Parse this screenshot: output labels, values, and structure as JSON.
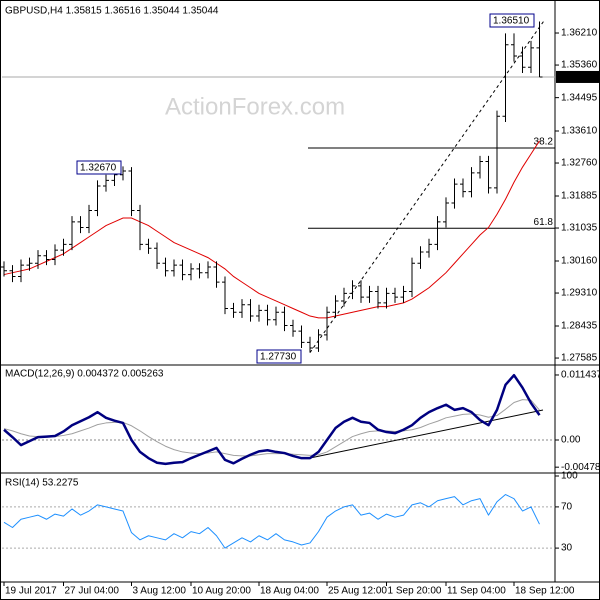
{
  "chart_data": [
    {
      "type": "ohlc",
      "title": "GBPUSD,H4 1.35815 1.36516 1.35044 1.35044",
      "watermark": "ActionForex.com",
      "color": "#000000",
      "open": [
        1.3,
        1.299,
        1.2975,
        1.3005,
        1.301,
        1.303,
        1.302,
        1.3045,
        1.306,
        1.312,
        1.3105,
        1.315,
        1.3215,
        1.323,
        1.3245,
        1.3255,
        1.315,
        1.306,
        1.305,
        1.301,
        1.299,
        1.3005,
        1.298,
        1.2995,
        1.2985,
        1.3,
        1.296,
        1.289,
        1.288,
        1.29,
        1.287,
        1.2885,
        1.286,
        1.288,
        1.2845,
        1.283,
        1.28,
        1.2785,
        1.282,
        1.288,
        1.291,
        1.293,
        1.295,
        1.292,
        1.2935,
        1.2905,
        1.293,
        1.292,
        1.2935,
        1.301,
        1.304,
        1.306,
        1.312,
        1.317,
        1.322,
        1.32,
        1.325,
        1.328,
        1.321,
        1.34,
        1.359,
        1.356,
        1.353,
        1.35815
      ],
      "high": [
        1.3015,
        1.3005,
        1.302,
        1.3025,
        1.3045,
        1.3045,
        1.306,
        1.3075,
        1.3135,
        1.3135,
        1.3165,
        1.323,
        1.3245,
        1.326,
        1.3267,
        1.3265,
        1.3165,
        1.3075,
        1.3065,
        1.3025,
        1.302,
        1.302,
        1.301,
        1.301,
        1.3015,
        1.3015,
        1.2975,
        1.2905,
        1.2915,
        1.2915,
        1.29,
        1.29,
        1.2895,
        1.2895,
        1.286,
        1.2845,
        1.2815,
        1.2835,
        1.2895,
        1.2925,
        1.2945,
        1.2965,
        1.2965,
        1.295,
        1.295,
        1.2945,
        1.2945,
        1.295,
        1.3025,
        1.3055,
        1.3075,
        1.3135,
        1.3185,
        1.3235,
        1.3235,
        1.3265,
        1.3295,
        1.3295,
        1.3415,
        1.362,
        1.362,
        1.3585,
        1.36,
        1.36516
      ],
      "low": [
        1.2975,
        1.296,
        1.296,
        1.299,
        1.2995,
        1.3005,
        1.3005,
        1.303,
        1.3045,
        1.309,
        1.309,
        1.3135,
        1.32,
        1.3215,
        1.323,
        1.3135,
        1.3045,
        1.3035,
        1.2995,
        1.2975,
        1.2975,
        1.2965,
        1.2965,
        1.297,
        1.297,
        1.2945,
        1.2875,
        1.2865,
        1.2865,
        1.2855,
        1.2855,
        1.2845,
        1.2845,
        1.283,
        1.2815,
        1.2785,
        1.2773,
        1.2775,
        1.2805,
        1.2865,
        1.2895,
        1.2915,
        1.2905,
        1.2905,
        1.289,
        1.289,
        1.2905,
        1.2905,
        1.292,
        1.2995,
        1.3025,
        1.3045,
        1.3105,
        1.3155,
        1.3185,
        1.3185,
        1.3235,
        1.3195,
        1.3195,
        1.3385,
        1.3545,
        1.3515,
        1.3515,
        1.35044
      ],
      "close": [
        1.299,
        1.2975,
        1.3005,
        1.301,
        1.303,
        1.302,
        1.3045,
        1.306,
        1.312,
        1.3105,
        1.315,
        1.3215,
        1.323,
        1.3245,
        1.3255,
        1.315,
        1.306,
        1.305,
        1.301,
        1.299,
        1.3005,
        1.298,
        1.2995,
        1.2985,
        1.3,
        1.296,
        1.289,
        1.288,
        1.29,
        1.287,
        1.2885,
        1.286,
        1.288,
        1.2845,
        1.283,
        1.28,
        1.2785,
        1.282,
        1.288,
        1.291,
        1.293,
        1.295,
        1.292,
        1.2935,
        1.2905,
        1.293,
        1.292,
        1.2935,
        1.301,
        1.304,
        1.306,
        1.312,
        1.317,
        1.322,
        1.32,
        1.325,
        1.328,
        1.321,
        1.34,
        1.359,
        1.356,
        1.353,
        1.35815,
        1.35044
      ],
      "ma": {
        "color": "#e00000",
        "values": [
          1.298,
          1.2985,
          1.299,
          1.2995,
          1.3005,
          1.3015,
          1.3025,
          1.3035,
          1.305,
          1.3065,
          1.308,
          1.3095,
          1.311,
          1.312,
          1.313,
          1.313,
          1.312,
          1.311,
          1.3095,
          1.308,
          1.3065,
          1.3055,
          1.3045,
          1.3035,
          1.3025,
          1.301,
          1.2995,
          1.2975,
          1.296,
          1.2945,
          1.293,
          1.292,
          1.291,
          1.29,
          1.289,
          1.288,
          1.287,
          1.2865,
          1.2865,
          1.287,
          1.2875,
          1.288,
          1.2885,
          1.289,
          1.2895,
          1.2895,
          1.29,
          1.2905,
          1.2915,
          1.293,
          1.2945,
          1.2965,
          1.2985,
          1.301,
          1.3035,
          1.306,
          1.3085,
          1.3105,
          1.314,
          1.318,
          1.3225,
          1.3265,
          1.33,
          1.3335
        ]
      },
      "current_price": 1.35044,
      "annotations": [
        {
          "value": 1.3651,
          "label": "1.36510"
        },
        {
          "value": 1.3267,
          "label": "1.32670"
        },
        {
          "value": 1.2773,
          "label": "1.27730"
        }
      ],
      "levels": [
        {
          "value": 1.3316,
          "label": "38.2"
        },
        {
          "value": 1.3103,
          "label": "61.8"
        }
      ],
      "ylim": [
        1.2748,
        1.3698
      ],
      "yticks": [
        {
          "value": 1.3621,
          "label": "1.36210"
        },
        {
          "value": 1.3536,
          "label": "1.35360"
        },
        1.34495,
        {
          "value": 1.3361,
          "label": "1.33610"
        },
        {
          "value": 1.3276,
          "label": "1.32760"
        },
        1.31885,
        1.31035,
        {
          "value": 1.3016,
          "label": "1.30160"
        },
        {
          "value": 1.2931,
          "label": "1.29310"
        },
        1.28435,
        1.27585
      ]
    },
    {
      "type": "line",
      "title": "MACD(12,26,9) 0.004372 0.005263",
      "series": [
        {
          "color": "#a0a0a0",
          "width": 1,
          "values": [
            0.002,
            0.0016,
            0.0011,
            0.0007,
            0.0006,
            0.0006,
            0.0006,
            0.0008,
            0.0011,
            0.0016,
            0.0021,
            0.0027,
            0.003,
            0.0031,
            0.0031,
            0.0025,
            0.0016,
            0.0006,
            -0.0003,
            -0.0011,
            -0.0017,
            -0.0021,
            -0.0023,
            -0.0024,
            -0.0023,
            -0.0021,
            -0.0024,
            -0.0027,
            -0.0028,
            -0.0028,
            -0.0026,
            -0.0024,
            -0.0024,
            -0.0024,
            -0.0025,
            -0.0026,
            -0.0027,
            -0.0026,
            -0.0021,
            -0.0012,
            -0.0003,
            0.0006,
            0.0011,
            0.0015,
            0.0016,
            0.0016,
            0.0015,
            0.0016,
            0.0018,
            0.0022,
            0.0028,
            0.0033,
            0.0039,
            0.0042,
            0.0045,
            0.0046,
            0.0044,
            0.004,
            0.0043,
            0.0054,
            0.0066,
            0.0071,
            0.007,
            0.005263
          ]
        },
        {
          "color": "#000080",
          "width": 2.5,
          "values": [
            0.0018,
            0.0005,
            -0.0009,
            -0.0002,
            0.0005,
            0.0006,
            0.0007,
            0.0015,
            0.0026,
            0.0033,
            0.004,
            0.0049,
            0.0039,
            0.0034,
            0.003,
            0.0,
            -0.0021,
            -0.0032,
            -0.004,
            -0.0042,
            -0.004,
            -0.0039,
            -0.0032,
            -0.0026,
            -0.002,
            -0.0014,
            -0.0035,
            -0.0041,
            -0.0033,
            -0.0026,
            -0.002,
            -0.0018,
            -0.0021,
            -0.0023,
            -0.0028,
            -0.0032,
            -0.0032,
            -0.0021,
            0.0,
            0.0021,
            0.0032,
            0.0039,
            0.0032,
            0.003,
            0.0018,
            0.0014,
            0.0012,
            0.0018,
            0.0026,
            0.0039,
            0.0049,
            0.0056,
            0.0062,
            0.0053,
            0.0056,
            0.0049,
            0.0035,
            0.0026,
            0.0053,
            0.0097,
            0.0114,
            0.0092,
            0.0065,
            0.004372
          ]
        }
      ],
      "ylim": [
        -0.00528,
        0.01284
      ],
      "yticks": [
        0.011437,
        {
          "value": 0,
          "label": "0.00"
        },
        -0.004782
      ]
    },
    {
      "type": "line",
      "title": "RSI(14) 53.2275",
      "series": [
        {
          "color": "#1e90ff",
          "width": 1,
          "values": [
            55,
            50,
            58,
            60,
            62,
            58,
            63,
            61,
            68,
            62,
            66,
            72,
            70,
            68,
            66,
            45,
            38,
            42,
            40,
            38,
            44,
            40,
            46,
            44,
            50,
            42,
            30,
            35,
            40,
            36,
            42,
            38,
            44,
            38,
            36,
            33,
            35,
            46,
            60,
            66,
            70,
            72,
            62,
            64,
            58,
            63,
            60,
            62,
            72,
            74,
            70,
            76,
            78,
            80,
            72,
            76,
            78,
            62,
            75,
            82,
            78,
            66,
            70,
            53.2275
          ]
        }
      ],
      "ylim": [
        0,
        100
      ],
      "yticks": [
        100,
        70,
        30
      ],
      "categories": [
        "19 Jul 2017",
        null,
        null,
        null,
        null,
        null,
        null,
        "27 Jul 04:00",
        null,
        null,
        null,
        null,
        null,
        null,
        null,
        "3 Aug 12:00",
        null,
        null,
        null,
        null,
        null,
        null,
        "10 Aug 20:00",
        null,
        null,
        null,
        null,
        null,
        null,
        null,
        "18 Aug 04:00",
        null,
        null,
        null,
        null,
        null,
        null,
        null,
        "25 Aug 12:00",
        null,
        null,
        null,
        null,
        null,
        null,
        "1 Sep 20:00",
        null,
        null,
        null,
        null,
        null,
        null,
        "11 Sep 04:00",
        null,
        null,
        null,
        null,
        null,
        null,
        null,
        "18 Sep 12:00",
        null,
        null,
        null
      ]
    }
  ]
}
